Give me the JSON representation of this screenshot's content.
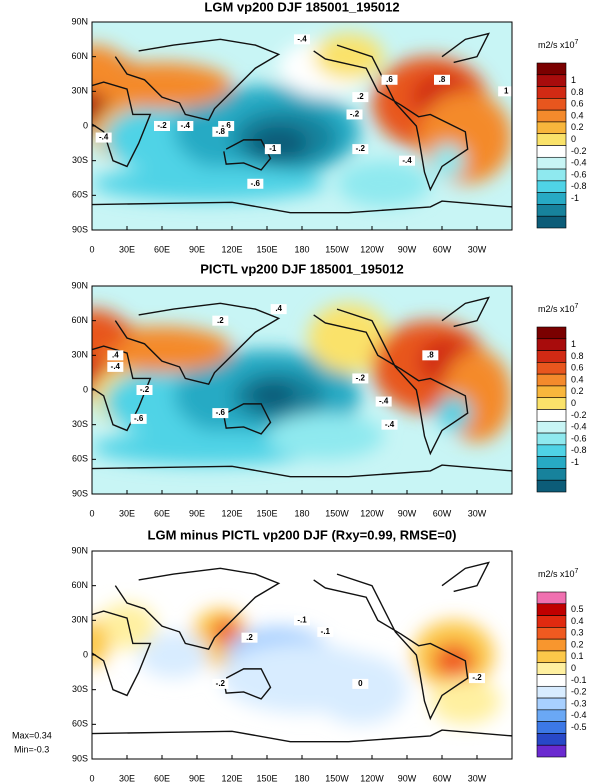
{
  "panels": [
    {
      "title": "LGM vp200 DJF 185001_195012",
      "lat_labels": [
        "90N",
        "60N",
        "30N",
        "0",
        "30S",
        "60S",
        "90S"
      ],
      "lon_labels": [
        "0",
        "30E",
        "60E",
        "90E",
        "120E",
        "150E",
        "180",
        "150W",
        "120W",
        "90W",
        "60W",
        "30W"
      ],
      "colorbar": {
        "unit": "m2/s x10",
        "exponent": "7",
        "labels": [
          "1",
          "0.8",
          "0.6",
          "0.4",
          "0.2",
          "0",
          "-0.2",
          "-0.4",
          "-0.6",
          "-0.8",
          "-1"
        ],
        "colors": [
          "#7a0000",
          "#a80c0c",
          "#d12a14",
          "#e8561e",
          "#f48a2c",
          "#f8b63c",
          "#fae26a",
          "#ffffff",
          "#c8f5f5",
          "#8fe9ef",
          "#4fd3e6",
          "#27aac4",
          "#17829c",
          "#0c5c78"
        ]
      },
      "contour_labels": [
        "-.4",
        ".6",
        ".8",
        "1",
        "-.6",
        "-.2",
        "-.4",
        "-.8",
        "-1",
        "-.6",
        "-.4",
        "-.2",
        ".2",
        "-.2",
        "-.4"
      ]
    },
    {
      "title": "PICTL vp200 DJF 185001_195012",
      "lat_labels": [
        "90N",
        "60N",
        "30N",
        "0",
        "30S",
        "60S",
        "90S"
      ],
      "lon_labels": [
        "0",
        "30E",
        "60E",
        "90E",
        "120E",
        "150E",
        "180",
        "150W",
        "120W",
        "90W",
        "60W",
        "30W"
      ],
      "colorbar": {
        "unit": "m2/s x10",
        "exponent": "7",
        "labels": [
          "1",
          "0.8",
          "0.6",
          "0.4",
          "0.2",
          "0",
          "-0.2",
          "-0.4",
          "-0.6",
          "-0.8",
          "-1"
        ],
        "colors": [
          "#7a0000",
          "#a80c0c",
          "#d12a14",
          "#e8561e",
          "#f48a2c",
          "#f8b63c",
          "#fae26a",
          "#ffffff",
          "#c8f5f5",
          "#8fe9ef",
          "#4fd3e6",
          "#27aac4",
          "#17829c",
          "#0c5c78"
        ]
      },
      "contour_labels": [
        ".4",
        ".2",
        ".8",
        ".4",
        "-.4",
        "-.2",
        "-.6",
        "-.2",
        "-.4",
        "-.6",
        "-.4"
      ]
    },
    {
      "title": "LGM minus PICTL vp200 DJF (Rxy=0.99, RMSE=0)",
      "lat_labels": [
        "90N",
        "60N",
        "30N",
        "0",
        "30S",
        "60S",
        "90S"
      ],
      "lon_labels": [
        "0",
        "30E",
        "60E",
        "90E",
        "120E",
        "150E",
        "180",
        "150W",
        "120W",
        "90W",
        "60W",
        "30W"
      ],
      "colorbar": {
        "unit": "m2/s x10",
        "exponent": "7",
        "labels": [
          "0.5",
          "0.4",
          "0.3",
          "0.2",
          "0.1",
          "0",
          "-0.1",
          "-0.2",
          "-0.3",
          "-0.4",
          "-0.5"
        ],
        "colors": [
          "#f070b0",
          "#c00000",
          "#e02a10",
          "#f05a20",
          "#f8962e",
          "#fcc84a",
          "#fff0a0",
          "#ffffff",
          "#d8ecff",
          "#a8d0ff",
          "#6aa8f5",
          "#3c78e6",
          "#2848c8",
          "#6a2ad0"
        ]
      },
      "contour_labels": [
        "-.1",
        "-.1",
        "0",
        "-.2",
        ".2",
        "-.2"
      ]
    }
  ],
  "stats": {
    "max": "Max=0.34",
    "min": "Min=-0.3"
  }
}
